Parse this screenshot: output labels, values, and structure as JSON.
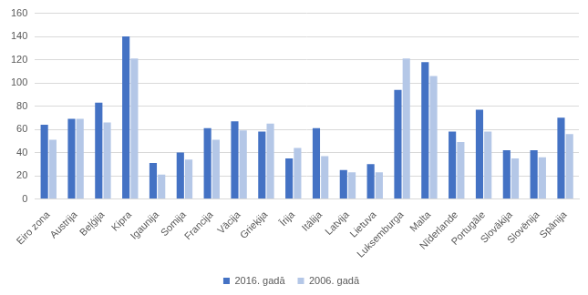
{
  "chart_data": {
    "type": "bar",
    "categories": [
      "Eiro zona",
      "Austrija",
      "Beļģija",
      "Kipra",
      "Igaunija",
      "Somija",
      "Francija",
      "Vācija",
      "Grieķija",
      "Īrija",
      "Itālija",
      "Latvija",
      "Lietuva",
      "Luksemburga",
      "Malta",
      "Nīderlande",
      "Portugāle",
      "Slovākija",
      "Slovēnija",
      "Spānija"
    ],
    "series": [
      {
        "name": "2016. gadā",
        "color": "#4472c4",
        "values": [
          64,
          69,
          83,
          140,
          31,
          40,
          61,
          67,
          58,
          35,
          61,
          25,
          30,
          94,
          118,
          58,
          77,
          42,
          42,
          70
        ]
      },
      {
        "name": "2006. gadā",
        "color": "#b4c7e7",
        "values": [
          51,
          69,
          66,
          121,
          21,
          34,
          51,
          59,
          65,
          44,
          37,
          23,
          23,
          121,
          106,
          49,
          58,
          35,
          36,
          56
        ]
      }
    ],
    "ylim": [
      0,
      160
    ],
    "yticks": [
      0,
      20,
      40,
      60,
      80,
      100,
      120,
      140,
      160
    ],
    "grid": true,
    "legend": "bottom"
  }
}
